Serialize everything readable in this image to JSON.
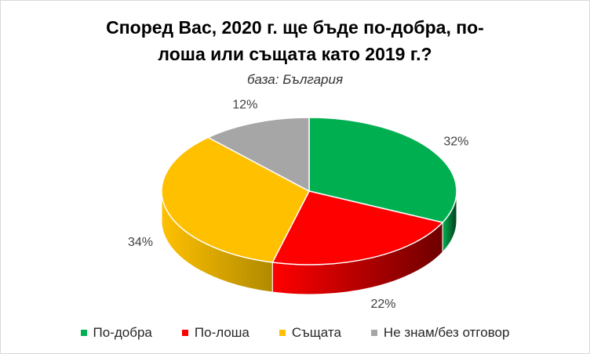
{
  "chart_data": {
    "type": "pie",
    "title_lines": [
      "Според Вас, 2020 г. ще бъде по-добра, по-",
      "лоша или същата като 2019 г.?"
    ],
    "subtitle": "база: България",
    "series": [
      {
        "name": "По-добра",
        "value": 32,
        "label": "32%",
        "color": "#00b050",
        "side_color": "#003d1c"
      },
      {
        "name": "По-лоша",
        "value": 22,
        "label": "22%",
        "color": "#ff0000",
        "side_color": "#6e0000"
      },
      {
        "name": "Същата",
        "value": 34,
        "label": "34%",
        "color": "#ffc000",
        "side_color": "#b08a00"
      },
      {
        "name": "Не знам/без отговор",
        "value": 12,
        "label": "12%",
        "color": "#a6a6a6",
        "side_color": "#5e5e5e"
      }
    ],
    "legend_position": "bottom"
  }
}
